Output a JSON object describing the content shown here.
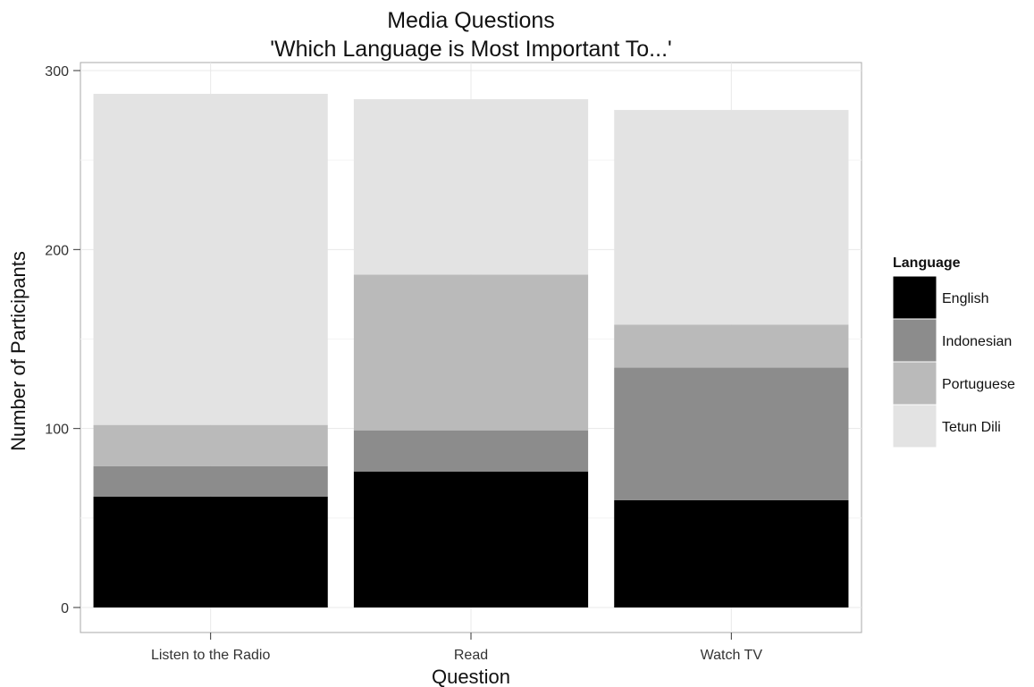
{
  "chart_data": {
    "type": "bar",
    "stacked": true,
    "title": "Media Questions",
    "subtitle": "'Which Language is Most Important To...'",
    "xlabel": "Question",
    "ylabel": "Number of Participants",
    "ylim": [
      -5,
      300
    ],
    "yticks": [
      0,
      100,
      200,
      300
    ],
    "grid": true,
    "legend_position": "right",
    "legend_title": "Language",
    "categories": [
      "Listen to the Radio",
      "Read",
      "Watch TV"
    ],
    "series": [
      {
        "name": "English",
        "color": "#000000",
        "values": [
          62,
          76,
          60
        ]
      },
      {
        "name": "Indonesian",
        "color": "#8c8c8c",
        "values": [
          17,
          23,
          74
        ]
      },
      {
        "name": "Portuguese",
        "color": "#bababa",
        "values": [
          23,
          87,
          24
        ]
      },
      {
        "name": "Tetun Dili",
        "color": "#e3e3e3",
        "values": [
          185,
          98,
          120
        ]
      }
    ],
    "totals": [
      287,
      284,
      278
    ]
  }
}
